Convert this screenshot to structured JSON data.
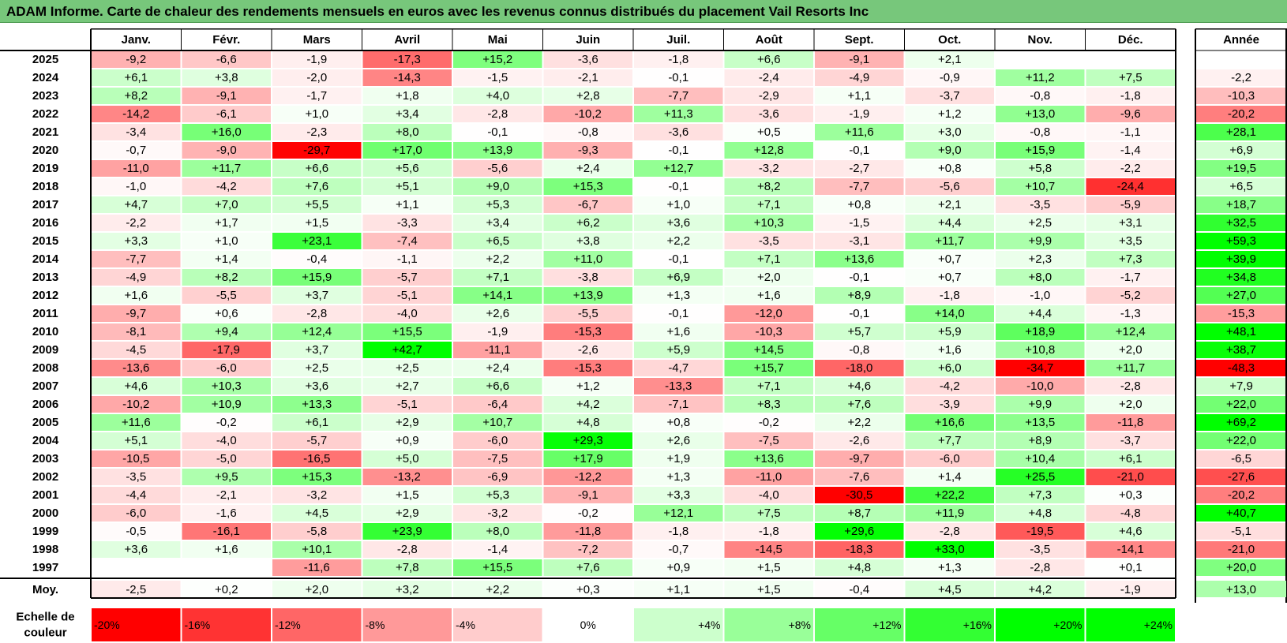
{
  "title": "ADAM Informe. Carte de chaleur des rendements mensuels en euros avec les revenus connus distribués du placement Vail Resorts Inc",
  "chart_data": {
    "type": "heatmap",
    "months": [
      "Janv.",
      "Févr.",
      "Mars",
      "Avril",
      "Mai",
      "Juin",
      "Juil.",
      "Août",
      "Sept.",
      "Oct.",
      "Nov.",
      "Déc."
    ],
    "year_header": "Année",
    "years": [
      "2025",
      "2024",
      "2023",
      "2022",
      "2021",
      "2020",
      "2019",
      "2018",
      "2017",
      "2016",
      "2015",
      "2014",
      "2013",
      "2012",
      "2011",
      "2010",
      "2009",
      "2008",
      "2007",
      "2006",
      "2005",
      "2004",
      "2003",
      "2002",
      "2001",
      "2000",
      "1999",
      "1998",
      "1997"
    ],
    "values": [
      [
        "-9,2",
        "-6,6",
        "-1,9",
        "-17,3",
        "+15,2",
        "-3,6",
        "-1,8",
        "+6,6",
        "-9,1",
        "+2,1",
        "",
        ""
      ],
      [
        "+6,1",
        "+3,8",
        "-2,0",
        "-14,3",
        "-1,5",
        "-2,1",
        "-0,1",
        "-2,4",
        "-4,9",
        "-0,9",
        "+11,2",
        "+7,5"
      ],
      [
        "+8,2",
        "-9,1",
        "-1,7",
        "+1,8",
        "+4,0",
        "+2,8",
        "-7,7",
        "-2,9",
        "+1,1",
        "-3,7",
        "-0,8",
        "-1,8"
      ],
      [
        "-14,2",
        "-6,1",
        "+1,0",
        "+3,4",
        "-2,8",
        "-10,2",
        "+11,3",
        "-3,6",
        "-1,9",
        "+1,2",
        "+13,0",
        "-9,6"
      ],
      [
        "-3,4",
        "+16,0",
        "-2,3",
        "+8,0",
        "-0,1",
        "-0,8",
        "-3,6",
        "+0,5",
        "+11,6",
        "+3,0",
        "-0,8",
        "-1,1"
      ],
      [
        "-0,7",
        "-9,0",
        "-29,7",
        "+17,0",
        "+13,9",
        "-9,3",
        "-0,1",
        "+12,8",
        "-0,1",
        "+9,0",
        "+15,9",
        "-1,4"
      ],
      [
        "-11,0",
        "+11,7",
        "+6,6",
        "+5,6",
        "-5,6",
        "+2,4",
        "+12,7",
        "-3,2",
        "-2,7",
        "+0,8",
        "+5,8",
        "-2,2"
      ],
      [
        "-1,0",
        "-4,2",
        "+7,6",
        "+5,1",
        "+9,0",
        "+15,3",
        "-0,1",
        "+8,2",
        "-7,7",
        "-5,6",
        "+10,7",
        "-24,4"
      ],
      [
        "+4,7",
        "+7,0",
        "+5,5",
        "+1,1",
        "+5,3",
        "-6,7",
        "+1,0",
        "+7,1",
        "+0,8",
        "+2,1",
        "-3,5",
        "-5,9"
      ],
      [
        "-2,2",
        "+1,7",
        "+1,5",
        "-3,3",
        "+3,4",
        "+6,2",
        "+3,6",
        "+10,3",
        "-1,5",
        "+4,4",
        "+2,5",
        "+3,1"
      ],
      [
        "+3,3",
        "+1,0",
        "+23,1",
        "-7,4",
        "+6,5",
        "+3,8",
        "+2,2",
        "-3,5",
        "-3,1",
        "+11,7",
        "+9,9",
        "+3,5"
      ],
      [
        "-7,7",
        "+1,4",
        "-0,4",
        "-1,1",
        "+2,2",
        "+11,0",
        "-0,1",
        "+7,1",
        "+13,6",
        "+0,7",
        "+2,3",
        "+7,3"
      ],
      [
        "-4,9",
        "+8,2",
        "+15,9",
        "-5,7",
        "+7,1",
        "-3,8",
        "+6,9",
        "+2,0",
        "-0,1",
        "+0,7",
        "+8,0",
        "-1,7"
      ],
      [
        "+1,6",
        "-5,5",
        "+3,7",
        "-5,1",
        "+14,1",
        "+13,9",
        "+1,3",
        "+1,6",
        "+8,9",
        "-1,8",
        "-1,0",
        "-5,2"
      ],
      [
        "-9,7",
        "+0,6",
        "-2,8",
        "-4,0",
        "+2,6",
        "-5,5",
        "-0,1",
        "-12,0",
        "-0,1",
        "+14,0",
        "+4,4",
        "-1,3"
      ],
      [
        "-8,1",
        "+9,4",
        "+12,4",
        "+15,5",
        "-1,9",
        "-15,3",
        "+1,6",
        "-10,3",
        "+5,7",
        "+5,9",
        "+18,9",
        "+12,4"
      ],
      [
        "-4,5",
        "-17,9",
        "+3,7",
        "+42,7",
        "-11,1",
        "-2,6",
        "+5,9",
        "+14,5",
        "-0,8",
        "+1,6",
        "+10,8",
        "+2,0"
      ],
      [
        "-13,6",
        "-6,0",
        "+2,5",
        "+2,5",
        "+2,4",
        "-15,3",
        "-4,7",
        "+15,7",
        "-18,0",
        "+6,0",
        "-34,7",
        "+11,7"
      ],
      [
        "+4,6",
        "+10,3",
        "+3,6",
        "+2,7",
        "+6,6",
        "+1,2",
        "-13,3",
        "+7,1",
        "+4,6",
        "-4,2",
        "-10,0",
        "-2,8"
      ],
      [
        "-10,2",
        "+10,9",
        "+13,3",
        "-5,1",
        "-6,4",
        "+4,2",
        "-7,1",
        "+8,3",
        "+7,6",
        "-3,9",
        "+9,9",
        "+2,0"
      ],
      [
        "+11,6",
        "-0,2",
        "+6,1",
        "+2,9",
        "+10,7",
        "+4,8",
        "+0,8",
        "-0,2",
        "+2,2",
        "+16,6",
        "+13,5",
        "-11,8"
      ],
      [
        "+5,1",
        "-4,0",
        "-5,7",
        "+0,9",
        "-6,0",
        "+29,3",
        "+2,6",
        "-7,5",
        "-2,6",
        "+7,7",
        "+8,9",
        "-3,7"
      ],
      [
        "-10,5",
        "-5,0",
        "-16,5",
        "+5,0",
        "-7,5",
        "+17,9",
        "+1,9",
        "+13,6",
        "-9,7",
        "-6,0",
        "+10,4",
        "+6,1"
      ],
      [
        "-3,5",
        "+9,5",
        "+15,3",
        "-13,2",
        "-6,9",
        "-12,2",
        "+1,3",
        "-11,0",
        "-7,6",
        "+1,4",
        "+25,5",
        "-21,0"
      ],
      [
        "-4,4",
        "-2,1",
        "-3,2",
        "+1,5",
        "+5,3",
        "-9,1",
        "+3,3",
        "-4,0",
        "-30,5",
        "+22,2",
        "+7,3",
        "+0,3"
      ],
      [
        "-6,0",
        "-1,6",
        "+4,5",
        "+2,9",
        "-3,2",
        "-0,2",
        "+12,1",
        "+7,5",
        "+8,7",
        "+11,9",
        "+4,8",
        "-4,8"
      ],
      [
        "-0,5",
        "-16,1",
        "-5,8",
        "+23,9",
        "+8,0",
        "-11,8",
        "-1,8",
        "-1,8",
        "+29,6",
        "-2,8",
        "-19,5",
        "+4,6"
      ],
      [
        "+3,6",
        "+1,6",
        "+10,1",
        "-2,8",
        "-1,4",
        "-7,2",
        "-0,7",
        "-14,5",
        "-18,3",
        "+33,0",
        "-3,5",
        "-14,1"
      ],
      [
        "",
        "",
        "-11,6",
        "+7,8",
        "+15,5",
        "+7,6",
        "+0,9",
        "+1,5",
        "+4,8",
        "+1,3",
        "-2,8",
        "+0,1"
      ]
    ],
    "annual": [
      "",
      "-2,2",
      "-10,3",
      "-20,2",
      "+28,1",
      "+6,9",
      "+19,5",
      "+6,5",
      "+18,7",
      "+32,5",
      "+59,3",
      "+39,9",
      "+34,8",
      "+27,0",
      "-15,3",
      "+48,1",
      "+38,7",
      "-48,3",
      "+7,9",
      "+22,0",
      "+69,2",
      "+22,0",
      "-6,5",
      "-27,6",
      "-20,2",
      "+40,7",
      "-5,1",
      "-21,0",
      "+20,0"
    ],
    "average_label": "Moy.",
    "average": [
      "-2,5",
      "+0,2",
      "+2,0",
      "+3,2",
      "+2,2",
      "+0,3",
      "+1,1",
      "+1,5",
      "-0,4",
      "+4,5",
      "+4,2",
      "-1,9"
    ],
    "average_annual": "+13,0",
    "scale_label": "Echelle de couleur",
    "scale": [
      "-20%",
      "-16%",
      "-12%",
      "-8%",
      "-4%",
      "0%",
      "+4%",
      "+8%",
      "+12%",
      "+16%",
      "+20%",
      "+24%"
    ],
    "colors": {
      "negative": "#ff0000",
      "neutral": "#ffffff",
      "positive": "#00ff00",
      "title_bg": "#77c77b"
    }
  }
}
